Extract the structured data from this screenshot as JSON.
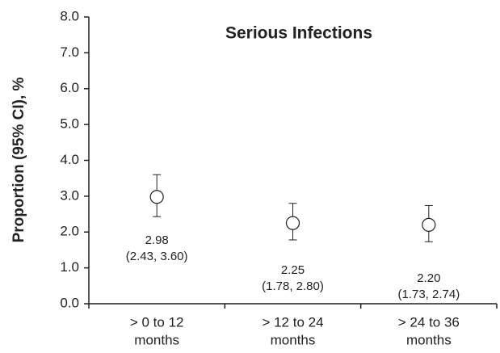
{
  "chart_data": {
    "type": "errorbar",
    "title": "Serious Infections",
    "y_label": "Proportion (95% CI), %",
    "categories": [
      [
        "> 0 to 12",
        "months"
      ],
      [
        "> 12 to 24",
        "months"
      ],
      [
        "> 24 to 36",
        "months"
      ]
    ],
    "values": [
      2.98,
      2.25,
      2.2
    ],
    "value_labels": [
      "2.98",
      "2.25",
      "2.20"
    ],
    "lower": [
      2.43,
      1.78,
      1.73
    ],
    "upper": [
      3.6,
      2.8,
      2.74
    ],
    "ci_labels": [
      "(2.43, 3.60)",
      "(1.78, 2.80)",
      "(1.73, 2.74)"
    ],
    "color": "#222222",
    "ylim": [
      0,
      8
    ],
    "yticks": [
      {
        "value": 0,
        "label": "0.0"
      },
      {
        "value": 1,
        "label": "1.0"
      },
      {
        "value": 2,
        "label": "2.0"
      },
      {
        "value": 3,
        "label": "3.0"
      },
      {
        "value": 4,
        "label": "4.0"
      },
      {
        "value": 5,
        "label": "5.0"
      },
      {
        "value": 6,
        "label": "6.0"
      },
      {
        "value": 7,
        "label": "7.0"
      },
      {
        "value": 8,
        "label": "8.0"
      }
    ]
  }
}
